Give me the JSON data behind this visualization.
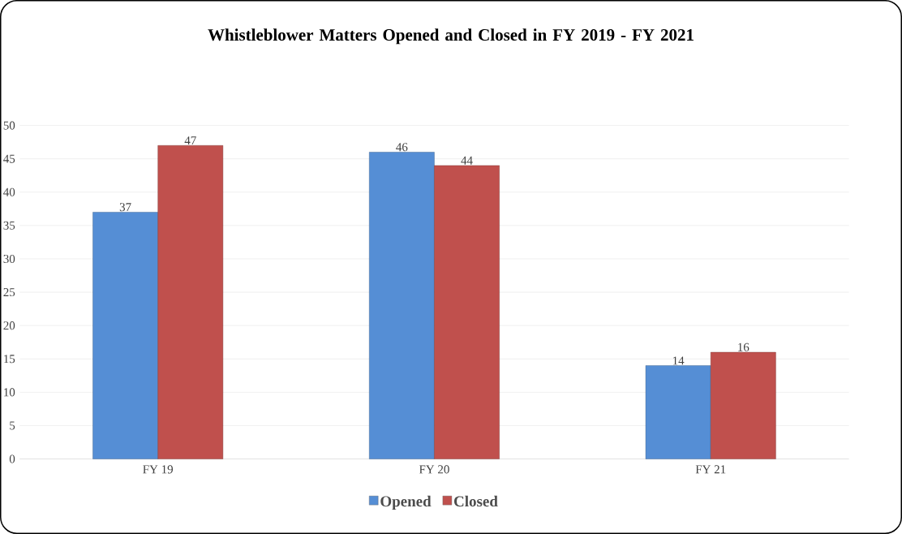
{
  "chart_data": {
    "type": "bar",
    "title": "Whistleblower Matters Opened and Closed in FY 2019 - FY 2021",
    "categories": [
      "FY 19",
      "FY 20",
      "FY 21"
    ],
    "series": [
      {
        "name": "Opened",
        "color": "#558ed5",
        "values": [
          37,
          46,
          14
        ]
      },
      {
        "name": "Closed",
        "color": "#c0504d",
        "values": [
          47,
          44,
          16
        ]
      }
    ],
    "ylim": [
      0,
      50
    ],
    "yticks": [
      0,
      5,
      10,
      15,
      20,
      25,
      30,
      35,
      40,
      45,
      50
    ],
    "grid": "y",
    "legend": "bottom",
    "data_labels": true
  }
}
